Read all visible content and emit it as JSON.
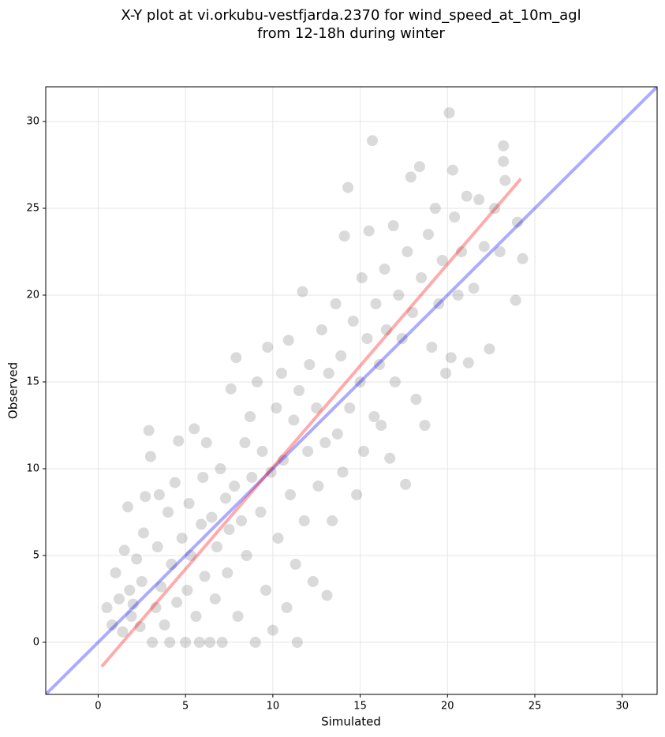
{
  "chart_data": {
    "type": "scatter",
    "title": [
      "X-Y plot at vi.orkubu-vestfjarda.2370 for wind_speed_at_10m_agl",
      "from 12-18h during winter"
    ],
    "x_label": "Simulated",
    "y_label": "Observed",
    "xlim": [
      -3,
      32
    ],
    "ylim": [
      -3,
      32
    ],
    "xticks": [
      0,
      5,
      10,
      15,
      20,
      25,
      30
    ],
    "yticks": [
      0,
      5,
      10,
      15,
      20,
      25,
      30
    ],
    "grid": true,
    "series": [
      {
        "color": "#333333",
        "x": [
          0.5,
          0.8,
          1.0,
          1.2,
          1.4,
          1.5,
          1.7,
          1.8,
          1.9,
          2.0,
          2.2,
          2.4,
          2.5,
          2.6,
          2.7,
          2.9,
          3.0,
          3.1,
          3.3,
          3.4,
          3.5,
          3.6,
          3.8,
          4.0,
          4.1,
          4.2,
          4.4,
          4.5,
          4.6,
          4.8,
          5.0,
          5.1,
          5.2,
          5.3,
          5.5,
          5.6,
          5.8,
          5.9,
          6.0,
          6.1,
          6.2,
          6.4,
          6.5,
          6.7,
          6.8,
          7.0,
          7.1,
          7.3,
          7.4,
          7.5,
          7.6,
          7.8,
          7.9,
          8.0,
          8.2,
          8.4,
          8.5,
          8.7,
          8.8,
          9.0,
          9.1,
          9.3,
          9.4,
          9.6,
          9.7,
          9.9,
          10.0,
          10.2,
          10.3,
          10.5,
          10.6,
          10.8,
          10.9,
          11.0,
          11.2,
          11.3,
          11.4,
          11.5,
          11.7,
          11.8,
          12.0,
          12.1,
          12.3,
          12.5,
          12.6,
          12.8,
          13.0,
          13.1,
          13.2,
          13.4,
          13.6,
          13.7,
          13.9,
          14.0,
          14.1,
          14.3,
          14.4,
          14.6,
          14.8,
          15.0,
          15.1,
          15.2,
          15.4,
          15.5,
          15.7,
          15.8,
          15.9,
          16.1,
          16.2,
          16.4,
          16.5,
          16.7,
          16.9,
          17.0,
          17.2,
          17.4,
          17.6,
          17.7,
          17.9,
          18.0,
          18.2,
          18.4,
          18.5,
          18.7,
          18.9,
          19.1,
          19.3,
          19.5,
          19.7,
          19.9,
          20.1,
          20.2,
          20.4,
          20.6,
          20.8,
          21.1,
          21.2,
          21.5,
          21.8,
          22.1,
          22.4,
          22.7,
          23.0,
          23.2,
          23.3,
          23.9,
          24.0,
          24.3,
          20.3,
          23.2
        ],
        "values": [
          2.0,
          1.0,
          4.0,
          2.5,
          0.6,
          5.3,
          7.8,
          3.0,
          1.5,
          2.2,
          4.8,
          0.9,
          3.5,
          6.3,
          8.4,
          12.2,
          10.7,
          0,
          2.0,
          5.5,
          8.5,
          3.2,
          1.0,
          7.5,
          0,
          4.5,
          9.2,
          2.3,
          11.6,
          6.0,
          0,
          3.0,
          8.0,
          5.0,
          12.3,
          1.5,
          0,
          6.8,
          9.5,
          3.8,
          11.5,
          0,
          7.2,
          2.5,
          5.5,
          10.0,
          0,
          8.3,
          4.0,
          6.5,
          14.6,
          9.0,
          16.4,
          1.5,
          7.0,
          11.5,
          5.0,
          13.0,
          9.5,
          0,
          15.0,
          7.5,
          11.0,
          3.0,
          17.0,
          9.8,
          0.7,
          13.5,
          6.0,
          15.5,
          10.5,
          2.0,
          17.4,
          8.5,
          12.8,
          4.5,
          0,
          14.5,
          20.2,
          7.0,
          11.0,
          16.0,
          3.5,
          13.5,
          9.0,
          18.0,
          11.5,
          2.7,
          15.5,
          7.0,
          19.5,
          12.0,
          16.5,
          9.8,
          23.4,
          26.2,
          13.5,
          18.5,
          8.5,
          15.0,
          21.0,
          11.0,
          17.5,
          23.7,
          28.9,
          13.0,
          19.5,
          16.0,
          12.5,
          21.5,
          18.0,
          10.6,
          24.0,
          15.0,
          20.0,
          17.5,
          9.1,
          22.5,
          26.8,
          19.0,
          14.0,
          27.4,
          21.0,
          12.5,
          23.5,
          17.0,
          25.0,
          19.5,
          22.0,
          15.5,
          30.5,
          16.4,
          24.5,
          20.0,
          22.5,
          25.7,
          16.1,
          20.4,
          25.5,
          22.8,
          16.9,
          25.0,
          22.5,
          28.6,
          26.6,
          19.7,
          24.2,
          22.1,
          27.2,
          27.7
        ]
      }
    ],
    "lines": [
      {
        "color": "#0000ff",
        "x": [
          -3,
          32
        ],
        "y": [
          -3,
          32
        ]
      },
      {
        "color": "#ff0000",
        "x": [
          0.2,
          24.2
        ],
        "y": [
          -1.4,
          26.7
        ]
      }
    ]
  }
}
